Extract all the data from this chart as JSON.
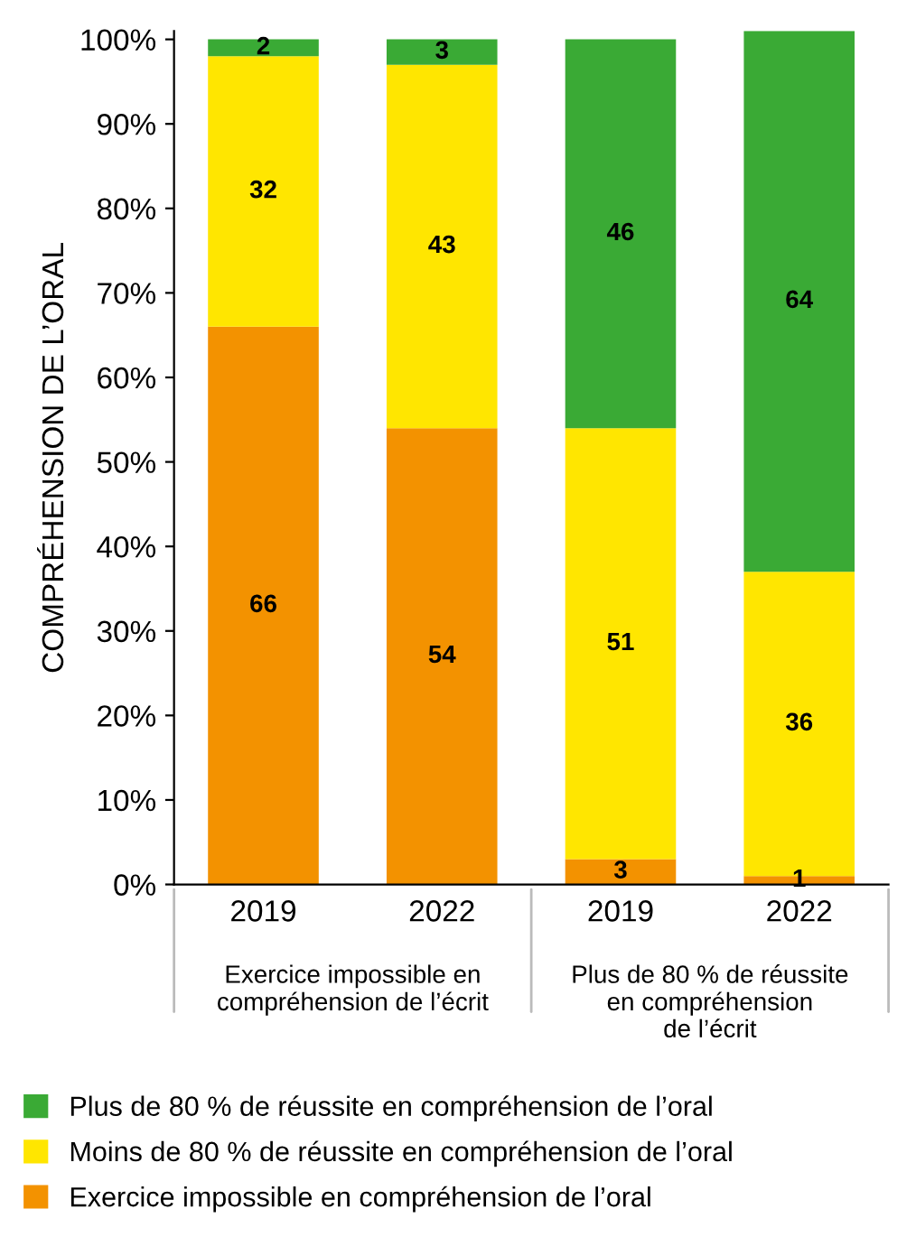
{
  "chart_data": {
    "type": "bar",
    "stacked": true,
    "ylabel": "COMPRÉHENSION DE L’ORAL",
    "categories": [
      "2019",
      "2022",
      "2019",
      "2022"
    ],
    "series": [
      {
        "name": "Exercice impossible en compréhension de l’oral",
        "color": "#f39200",
        "values": [
          66,
          54,
          3,
          1
        ]
      },
      {
        "name": "Moins de 80 % de réussite en compréhension de l’oral",
        "color": "#ffe600",
        "values": [
          32,
          43,
          51,
          36
        ]
      },
      {
        "name": "Plus de 80 % de réussite en compréhension de l’oral",
        "color": "#3aaa35",
        "values": [
          2,
          3,
          46,
          64
        ]
      }
    ],
    "ylim": [
      0,
      101
    ],
    "yticks": [
      {
        "value": 0,
        "label": "0%"
      },
      {
        "value": 10,
        "label": "10%"
      },
      {
        "value": 20,
        "label": "20%"
      },
      {
        "value": 30,
        "label": "30%"
      },
      {
        "value": 40,
        "label": "40%"
      },
      {
        "value": 50,
        "label": "50%"
      },
      {
        "value": 60,
        "label": "60%"
      },
      {
        "value": 70,
        "label": "70%"
      },
      {
        "value": 80,
        "label": "80%"
      },
      {
        "value": 90,
        "label": "90%"
      },
      {
        "value": 100,
        "label": "100%"
      }
    ],
    "annotations": [
      "Exercice impossible en\ncompréhension de l’écrit",
      "Plus de 80 % de réussite\nen compréhension\nde l’écrit"
    ],
    "data_labels": true,
    "grid": false,
    "legend": "bottom"
  }
}
